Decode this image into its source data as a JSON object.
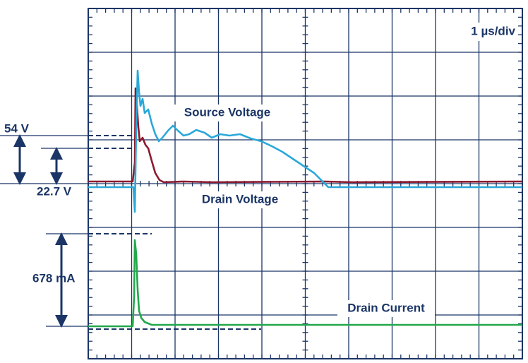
{
  "scope": {
    "timebase": "1 µs/div",
    "traces": {
      "source": "Source Voltage",
      "drain_voltage": "Drain Voltage",
      "drain_current": "Drain Current"
    },
    "measurements": {
      "source_step": "54 V",
      "drain_step": "22.7 V",
      "current_step": "678 mA"
    }
  }
}
